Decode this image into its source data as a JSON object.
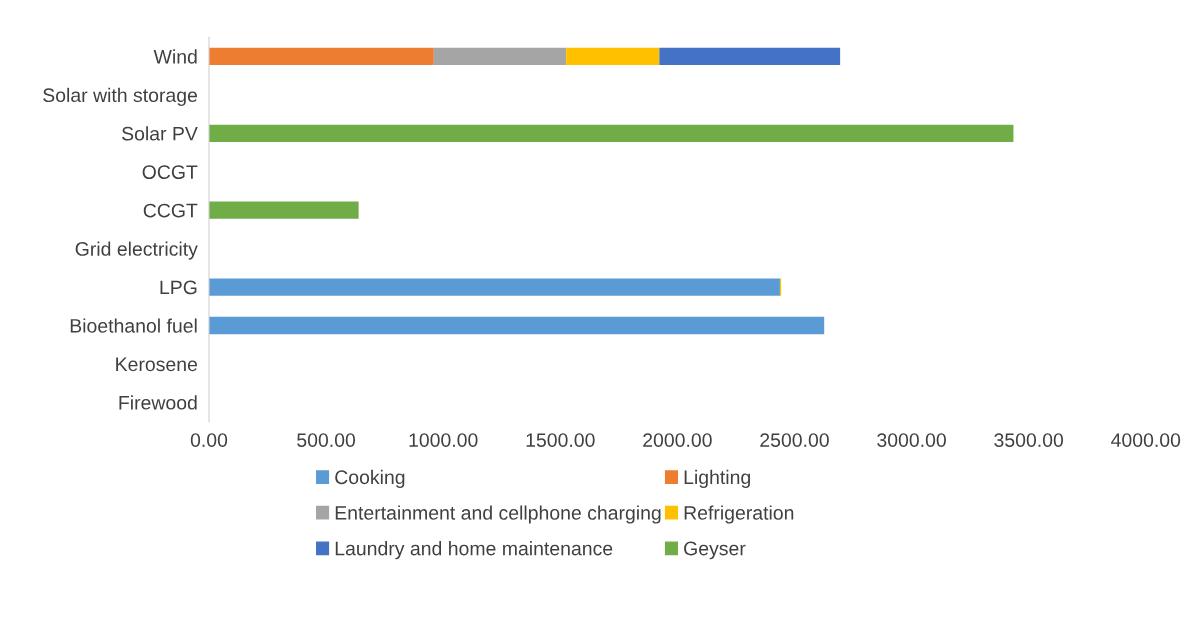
{
  "chart_data": {
    "type": "bar",
    "orientation": "horizontal",
    "stacked": true,
    "categories": [
      "Wind",
      "Solar with storage",
      "Solar PV",
      "OCGT",
      "CCGT",
      "Grid electricity",
      "LPG",
      "Bioethanol fuel",
      "Kerosene",
      "Firewood"
    ],
    "series": [
      {
        "name": "Cooking",
        "color": "#5b9bd5",
        "values": [
          null,
          null,
          null,
          null,
          null,
          null,
          2438,
          2627,
          null,
          null
        ]
      },
      {
        "name": "Lighting",
        "color": "#ed7d31",
        "values": [
          960,
          null,
          null,
          null,
          null,
          null,
          null,
          null,
          null,
          null
        ]
      },
      {
        "name": "Entertainment and cellphone charging",
        "color": "#a5a5a5",
        "values": [
          565,
          null,
          null,
          null,
          null,
          null,
          null,
          null,
          null,
          null
        ]
      },
      {
        "name": "Refrigeration",
        "color": "#ffc000",
        "values": [
          398,
          null,
          null,
          null,
          null,
          null,
          5,
          null,
          null,
          null
        ]
      },
      {
        "name": "Laundry and home maintenance",
        "color": "#4472c4",
        "values": [
          772,
          null,
          null,
          null,
          null,
          null,
          null,
          null,
          null,
          null
        ]
      },
      {
        "name": "Geyser",
        "color": "#70ad47",
        "values": [
          null,
          null,
          3435,
          null,
          639,
          null,
          null,
          null,
          null,
          null
        ]
      }
    ],
    "xlim": [
      0,
      4000
    ],
    "xticks": [
      {
        "value": 0,
        "label": "0.00"
      },
      {
        "value": 500,
        "label": "500.00"
      },
      {
        "value": 1000,
        "label": "1000.00"
      },
      {
        "value": 1500,
        "label": "1500.00"
      },
      {
        "value": 2000,
        "label": "2000.00"
      },
      {
        "value": 2500,
        "label": "2500.00"
      },
      {
        "value": 3000,
        "label": "3000.00"
      },
      {
        "value": 3500,
        "label": "3500.00"
      },
      {
        "value": 4000,
        "label": "4000.00"
      }
    ],
    "grid": false,
    "legend": "bottom"
  }
}
